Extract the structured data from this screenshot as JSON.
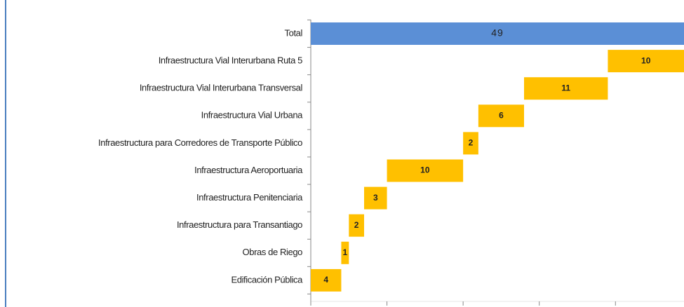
{
  "chart_data": {
    "type": "waterfall",
    "orientation": "horizontal",
    "total": {
      "label": "Total",
      "value": 49,
      "color": "#5b8fd6"
    },
    "categories": [
      "Infraestructura Vial Interurbana Ruta 5",
      "Infraestructura Vial Interurbana Transversal",
      "Infraestructura Vial Urbana",
      "Infraestructura para Corredores de Transporte Público",
      "Infraestructura Aeroportuaria",
      "Infraestructura Penitenciaria",
      "Infraestructura para Transantiago",
      "Obras de Riego",
      "Edificación Pública"
    ],
    "values": [
      10,
      11,
      6,
      2,
      10,
      3,
      2,
      1,
      4
    ],
    "color": "#ffc000",
    "xlim": [
      0,
      49
    ],
    "xticks": [
      0,
      10,
      20,
      30,
      40
    ]
  }
}
